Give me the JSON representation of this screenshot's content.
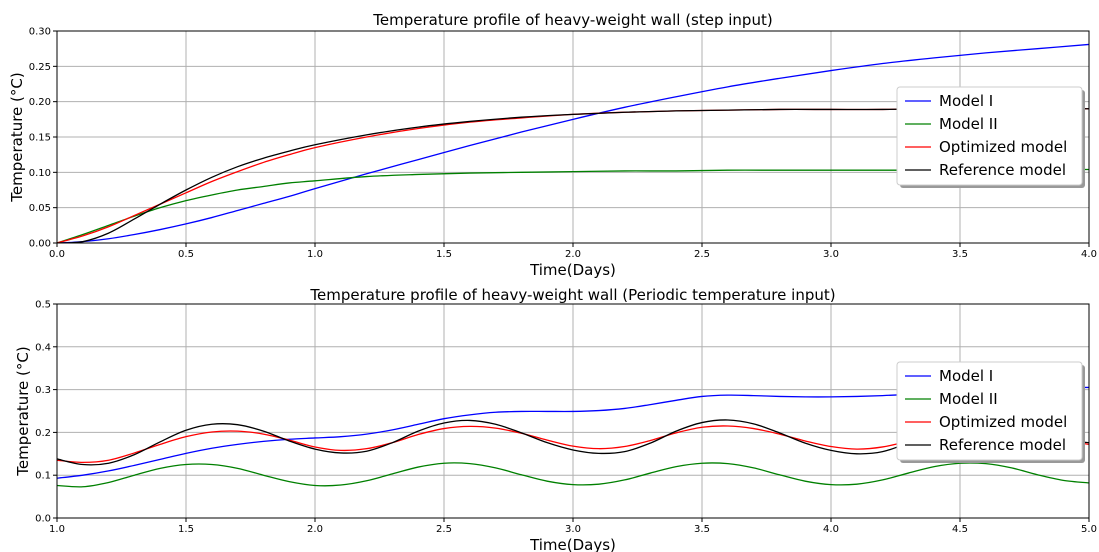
{
  "chart_data": [
    {
      "type": "line",
      "title": "Temperature profile of heavy-weight wall (step input)",
      "xlabel": "Time(Days)",
      "ylabel": "Temperature (°C)",
      "xlim": [
        0,
        4
      ],
      "ylim": [
        0,
        0.3
      ],
      "xticks": [
        "0.0",
        "0.5",
        "1.0",
        "1.5",
        "2.0",
        "2.5",
        "3.0",
        "3.5",
        "4.0"
      ],
      "yticks": [
        "0.00",
        "0.05",
        "0.10",
        "0.15",
        "0.20",
        "0.25",
        "0.30"
      ],
      "grid": true,
      "legend_position": "center-right",
      "x": [
        0,
        0.1,
        0.2,
        0.3,
        0.4,
        0.5,
        0.6,
        0.7,
        0.8,
        0.9,
        1.0,
        1.2,
        1.4,
        1.6,
        1.8,
        2.0,
        2.2,
        2.4,
        2.6,
        2.8,
        3.0,
        3.2,
        3.4,
        3.6,
        3.8,
        4.0
      ],
      "series": [
        {
          "name": "Model I",
          "color": "#0000ff",
          "values": [
            0,
            0.002,
            0.006,
            0.012,
            0.019,
            0.027,
            0.036,
            0.046,
            0.056,
            0.066,
            0.077,
            0.098,
            0.118,
            0.138,
            0.157,
            0.175,
            0.192,
            0.207,
            0.221,
            0.233,
            0.244,
            0.254,
            0.262,
            0.269,
            0.275,
            0.281
          ]
        },
        {
          "name": "Model II",
          "color": "#008000",
          "values": [
            0,
            0.012,
            0.025,
            0.038,
            0.05,
            0.06,
            0.068,
            0.075,
            0.08,
            0.085,
            0.088,
            0.094,
            0.097,
            0.099,
            0.1,
            0.101,
            0.102,
            0.102,
            0.103,
            0.103,
            0.103,
            0.103,
            0.103,
            0.103,
            0.104,
            0.104
          ]
        },
        {
          "name": "Optimized model",
          "color": "#ff0000",
          "values": [
            0,
            0.01,
            0.023,
            0.039,
            0.055,
            0.071,
            0.087,
            0.101,
            0.114,
            0.125,
            0.135,
            0.15,
            0.162,
            0.171,
            0.177,
            0.182,
            0.185,
            0.187,
            0.188,
            0.189,
            0.189,
            0.189,
            0.19,
            0.19,
            0.19,
            0.19
          ]
        },
        {
          "name": "Reference model",
          "color": "#000000",
          "values": [
            0,
            0.002,
            0.014,
            0.034,
            0.055,
            0.075,
            0.093,
            0.108,
            0.12,
            0.13,
            0.139,
            0.153,
            0.164,
            0.172,
            0.178,
            0.182,
            0.185,
            0.187,
            0.188,
            0.189,
            0.189,
            0.189,
            0.19,
            0.19,
            0.19,
            0.19
          ]
        }
      ]
    },
    {
      "type": "line",
      "title": "Temperature profile of heavy-weight wall (Periodic temperature input)",
      "xlabel": "Time(Days)",
      "ylabel": "Temperature (°C)",
      "xlim": [
        1,
        5
      ],
      "ylim": [
        0,
        0.5
      ],
      "xticks": [
        "1.0",
        "1.5",
        "2.0",
        "2.5",
        "3.0",
        "3.5",
        "4.0",
        "4.5",
        "5.0"
      ],
      "yticks": [
        "0.0",
        "0.1",
        "0.2",
        "0.3",
        "0.4",
        "0.5"
      ],
      "grid": true,
      "legend_position": "center-right",
      "x": [
        1.0,
        1.1,
        1.2,
        1.3,
        1.4,
        1.5,
        1.6,
        1.7,
        1.8,
        1.9,
        2.0,
        2.1,
        2.2,
        2.3,
        2.4,
        2.5,
        2.6,
        2.7,
        2.8,
        2.9,
        3.0,
        3.1,
        3.2,
        3.3,
        3.4,
        3.5,
        3.6,
        3.7,
        3.8,
        3.9,
        4.0,
        4.1,
        4.2,
        4.3,
        4.4,
        4.5,
        4.6,
        4.7,
        4.8,
        4.9,
        5.0
      ],
      "series": [
        {
          "name": "Model I",
          "color": "#0000ff",
          "values": [
            0.093,
            0.1,
            0.11,
            0.123,
            0.137,
            0.151,
            0.163,
            0.172,
            0.179,
            0.184,
            0.187,
            0.19,
            0.196,
            0.206,
            0.219,
            0.232,
            0.241,
            0.247,
            0.249,
            0.249,
            0.249,
            0.251,
            0.256,
            0.265,
            0.275,
            0.284,
            0.287,
            0.286,
            0.284,
            0.283,
            0.283,
            0.284,
            0.286,
            0.289,
            0.294,
            0.3,
            0.305,
            0.307,
            0.306,
            0.305,
            0.305
          ]
        },
        {
          "name": "Model II",
          "color": "#008000",
          "values": [
            0.076,
            0.073,
            0.083,
            0.1,
            0.116,
            0.125,
            0.125,
            0.116,
            0.1,
            0.085,
            0.076,
            0.077,
            0.087,
            0.103,
            0.119,
            0.128,
            0.127,
            0.117,
            0.101,
            0.086,
            0.078,
            0.079,
            0.089,
            0.105,
            0.12,
            0.128,
            0.127,
            0.117,
            0.101,
            0.086,
            0.078,
            0.079,
            0.089,
            0.105,
            0.12,
            0.128,
            0.127,
            0.117,
            0.101,
            0.088,
            0.082
          ]
        },
        {
          "name": "Optimized model",
          "color": "#ff0000",
          "values": [
            0.135,
            0.13,
            0.135,
            0.152,
            0.172,
            0.19,
            0.201,
            0.203,
            0.196,
            0.182,
            0.166,
            0.158,
            0.162,
            0.176,
            0.195,
            0.209,
            0.214,
            0.21,
            0.198,
            0.182,
            0.168,
            0.162,
            0.167,
            0.181,
            0.199,
            0.212,
            0.215,
            0.209,
            0.196,
            0.18,
            0.167,
            0.161,
            0.166,
            0.18,
            0.198,
            0.211,
            0.214,
            0.208,
            0.195,
            0.182,
            0.172
          ]
        },
        {
          "name": "Reference model",
          "color": "#000000",
          "values": [
            0.138,
            0.125,
            0.128,
            0.148,
            0.178,
            0.205,
            0.219,
            0.218,
            0.203,
            0.18,
            0.161,
            0.152,
            0.156,
            0.176,
            0.203,
            0.222,
            0.228,
            0.219,
            0.199,
            0.176,
            0.159,
            0.151,
            0.155,
            0.175,
            0.203,
            0.223,
            0.229,
            0.22,
            0.199,
            0.175,
            0.158,
            0.15,
            0.155,
            0.176,
            0.204,
            0.222,
            0.226,
            0.216,
            0.197,
            0.182,
            0.176
          ]
        }
      ]
    }
  ]
}
